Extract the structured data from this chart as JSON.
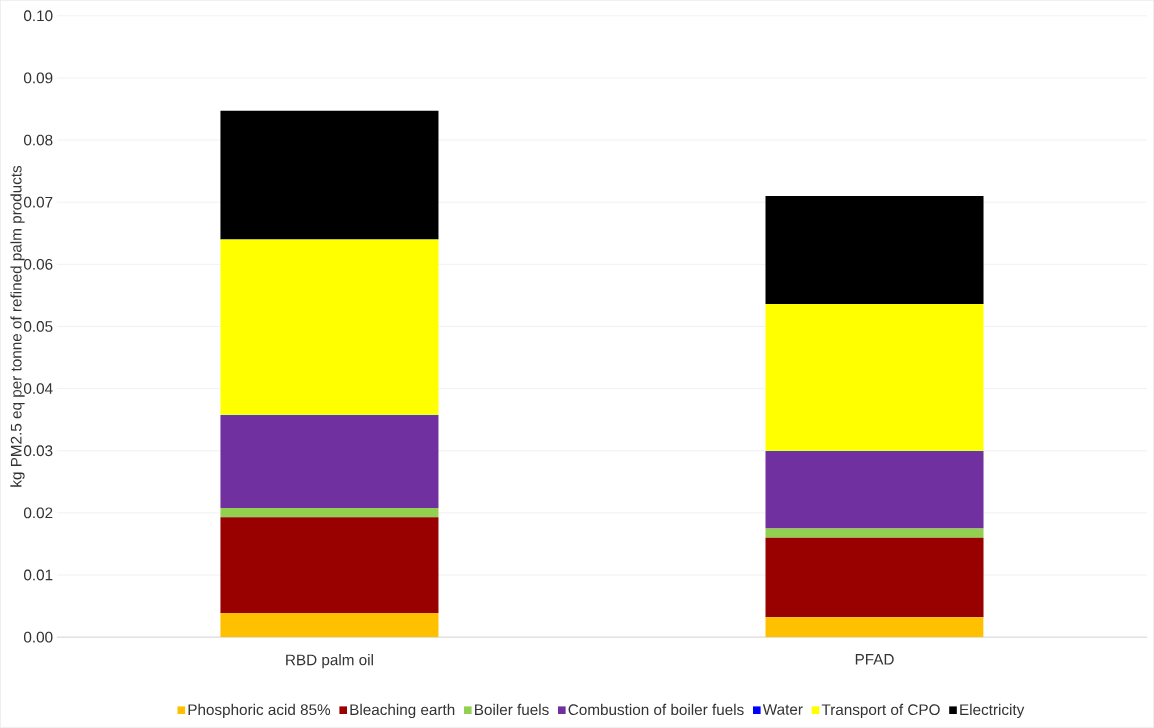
{
  "chart_data": {
    "type": "bar",
    "stacked": true,
    "ylabel": "kg PM2.5 eq per tonne of refined palm products",
    "categories": [
      "RBD palm oil",
      "PFAD"
    ],
    "series": [
      {
        "name": "Phosphoric acid 85%",
        "color": "#ffc000",
        "values": [
          0.0039,
          0.0032
        ]
      },
      {
        "name": "Bleaching earth",
        "color": "#990000",
        "values": [
          0.0154,
          0.0128
        ]
      },
      {
        "name": "Boiler fuels",
        "color": "#92d050",
        "values": [
          0.0015,
          0.0015
        ]
      },
      {
        "name": "Combustion of boiler fuels",
        "color": "#7030a0",
        "values": [
          0.0148,
          0.0123
        ]
      },
      {
        "name": "Water",
        "color": "#0000ff",
        "values": [
          0.0001,
          0.0001
        ]
      },
      {
        "name": "Transport of CPO",
        "color": "#ffff00",
        "values": [
          0.0283,
          0.0237
        ]
      },
      {
        "name": "Electricity",
        "color": "#000000",
        "values": [
          0.0207,
          0.0174
        ]
      }
    ],
    "ylim": [
      0,
      0.1
    ],
    "yticks": [
      {
        "value": 0,
        "label": "0.00"
      },
      {
        "value": 0.01,
        "label": "0.01"
      },
      {
        "value": 0.02,
        "label": "0.02"
      },
      {
        "value": 0.03,
        "label": "0.03"
      },
      {
        "value": 0.04,
        "label": "0.04"
      },
      {
        "value": 0.05,
        "label": "0.05"
      },
      {
        "value": 0.06,
        "label": "0.06"
      },
      {
        "value": 0.07,
        "label": "0.07"
      },
      {
        "value": 0.08,
        "label": "0.08"
      },
      {
        "value": 0.09,
        "label": "0.09"
      },
      {
        "value": 0.1,
        "label": "0.10"
      }
    ],
    "grid": "y",
    "legend": "bottom"
  }
}
